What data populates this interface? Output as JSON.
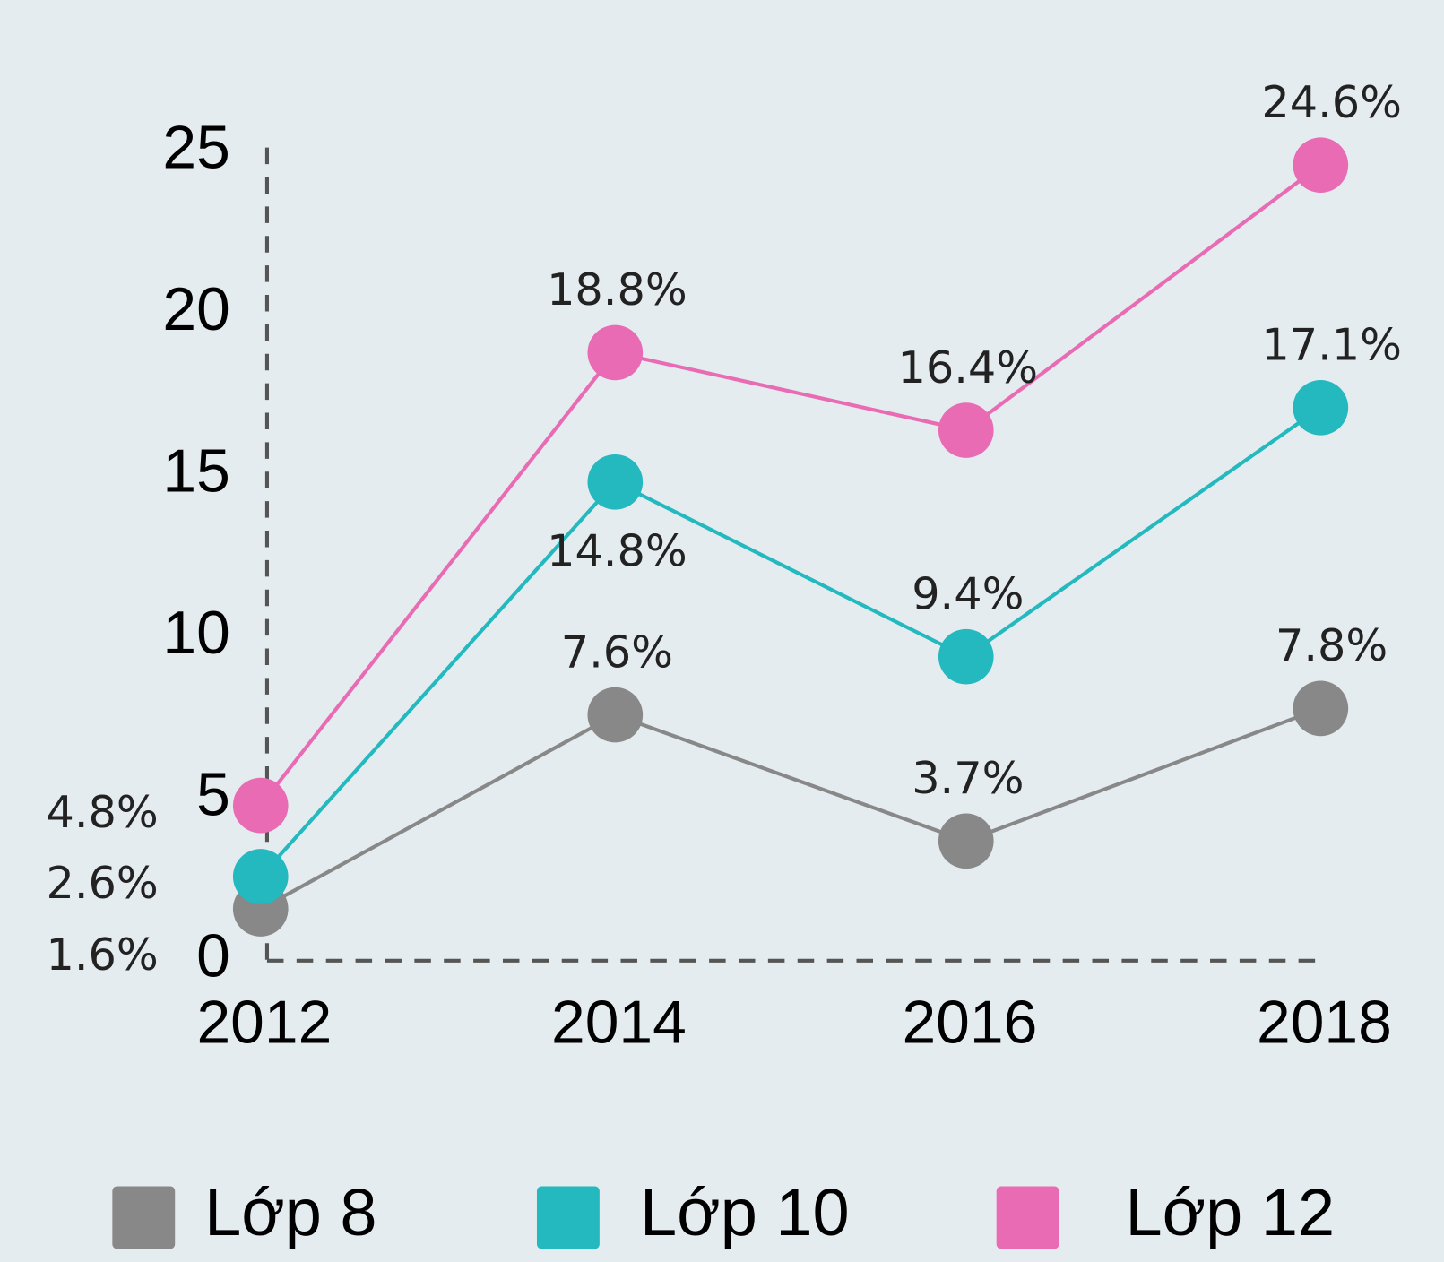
{
  "chart_data": {
    "type": "line",
    "categories": [
      "2012",
      "2014",
      "2016",
      "2018"
    ],
    "series": [
      {
        "name": "Lớp 8",
        "color": "#888888",
        "values": [
          1.6,
          7.6,
          3.7,
          7.8
        ],
        "value_labels": [
          "1.6%",
          "7.6%",
          "3.7%",
          "7.8%"
        ]
      },
      {
        "name": "Lớp 10",
        "color": "#24b8bf",
        "values": [
          2.6,
          14.8,
          9.4,
          17.1
        ],
        "value_labels": [
          "2.6%",
          "14.8%",
          "9.4%",
          "17.1%"
        ]
      },
      {
        "name": "Lớp 12",
        "color": "#e86bb4",
        "values": [
          4.8,
          18.8,
          16.4,
          24.6
        ],
        "value_labels": [
          "4.8%",
          "18.8%",
          "16.4%",
          "24.6%"
        ]
      }
    ],
    "ylim": [
      0,
      25
    ],
    "yticks": [
      0,
      5,
      10,
      15,
      20,
      25
    ],
    "grid": false,
    "legend": "bottom"
  }
}
